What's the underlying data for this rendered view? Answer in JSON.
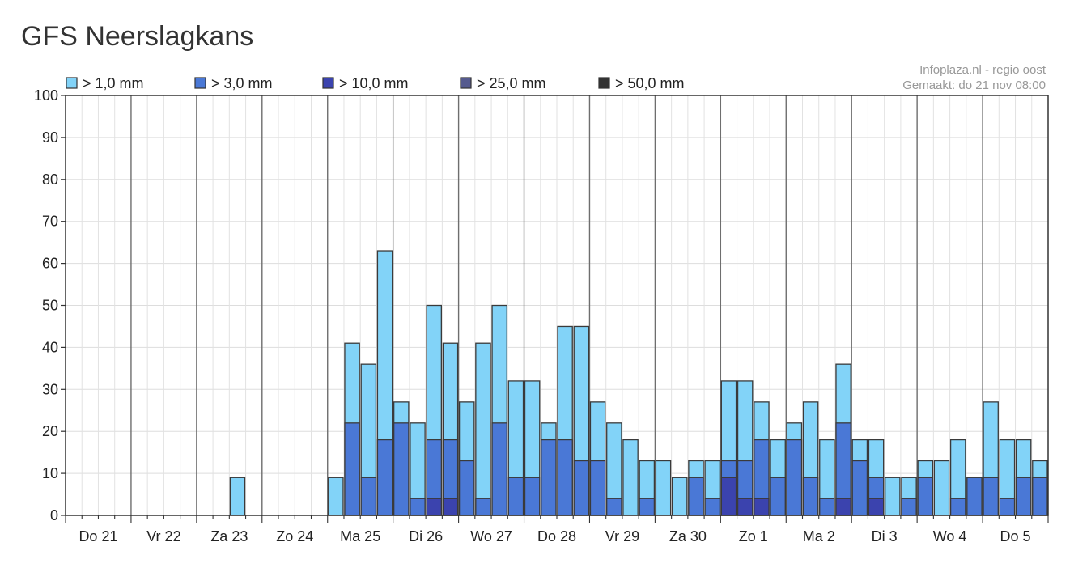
{
  "page": {
    "title": "GFS Neerslagkans"
  },
  "chart_data": {
    "type": "bar",
    "stacked": "overlay",
    "source_line": "Infoplaza.nl - regio oost",
    "made_line": "Gemaakt: do 21 nov 08:00",
    "ylim": [
      0,
      100
    ],
    "yticks": [
      0,
      10,
      20,
      30,
      40,
      50,
      60,
      70,
      80,
      90,
      100
    ],
    "grid": true,
    "legend_position": "top-left",
    "day_labels": [
      "Do 21",
      "Vr 22",
      "Za 23",
      "Zo 24",
      "Ma 25",
      "Di 26",
      "Wo 27",
      "Do 28",
      "Vr 29",
      "Za 30",
      "Zo 1",
      "Ma 2",
      "Di 3",
      "Wo 4",
      "Do 5"
    ],
    "bars_per_day": 4,
    "series": [
      {
        "name": "> 1,0 mm",
        "color": "#82d3f8",
        "values": [
          0,
          0,
          0,
          0,
          0,
          0,
          0,
          0,
          0,
          0,
          9,
          0,
          0,
          0,
          0,
          0,
          9,
          41,
          36,
          63,
          27,
          22,
          50,
          41,
          27,
          41,
          50,
          32,
          32,
          22,
          45,
          45,
          27,
          22,
          18,
          13,
          13,
          9,
          13,
          13,
          32,
          32,
          27,
          18,
          22,
          27,
          18,
          36,
          18,
          18,
          9,
          9,
          13,
          13,
          18,
          9,
          27,
          18,
          18,
          13
        ]
      },
      {
        "name": "> 3,0 mm",
        "color": "#4a78d6",
        "values": [
          0,
          0,
          0,
          0,
          0,
          0,
          0,
          0,
          0,
          0,
          0,
          0,
          0,
          0,
          0,
          0,
          0,
          22,
          9,
          18,
          22,
          4,
          18,
          18,
          13,
          4,
          22,
          9,
          9,
          18,
          18,
          13,
          13,
          4,
          0,
          4,
          0,
          0,
          9,
          4,
          13,
          13,
          18,
          9,
          18,
          9,
          4,
          22,
          13,
          9,
          0,
          4,
          9,
          0,
          4,
          9,
          9,
          4,
          9,
          9
        ]
      },
      {
        "name": "> 10,0 mm",
        "color": "#3b43ae",
        "values": [
          0,
          0,
          0,
          0,
          0,
          0,
          0,
          0,
          0,
          0,
          0,
          0,
          0,
          0,
          0,
          0,
          0,
          0,
          0,
          0,
          0,
          0,
          4,
          4,
          0,
          0,
          0,
          0,
          0,
          0,
          0,
          0,
          0,
          0,
          0,
          0,
          0,
          0,
          0,
          0,
          9,
          4,
          4,
          0,
          0,
          0,
          0,
          4,
          0,
          4,
          0,
          0,
          0,
          0,
          0,
          0,
          0,
          0,
          0,
          0
        ]
      },
      {
        "name": "> 25,0 mm",
        "color": "#555a8e",
        "values": [
          0,
          0,
          0,
          0,
          0,
          0,
          0,
          0,
          0,
          0,
          0,
          0,
          0,
          0,
          0,
          0,
          0,
          0,
          0,
          0,
          0,
          0,
          0,
          0,
          0,
          0,
          0,
          0,
          0,
          0,
          0,
          0,
          0,
          0,
          0,
          0,
          0,
          0,
          0,
          0,
          0,
          0,
          0,
          0,
          0,
          0,
          0,
          0,
          0,
          0,
          0,
          0,
          0,
          0,
          0,
          0,
          0,
          0,
          0,
          0
        ]
      },
      {
        "name": "> 50,0 mm",
        "color": "#333333",
        "values": [
          0,
          0,
          0,
          0,
          0,
          0,
          0,
          0,
          0,
          0,
          0,
          0,
          0,
          0,
          0,
          0,
          0,
          0,
          0,
          0,
          0,
          0,
          0,
          0,
          0,
          0,
          0,
          0,
          0,
          0,
          0,
          0,
          0,
          0,
          0,
          0,
          0,
          0,
          0,
          0,
          0,
          0,
          0,
          0,
          0,
          0,
          0,
          0,
          0,
          0,
          0,
          0,
          0,
          0,
          0,
          0,
          0,
          0,
          0,
          0
        ]
      }
    ]
  }
}
